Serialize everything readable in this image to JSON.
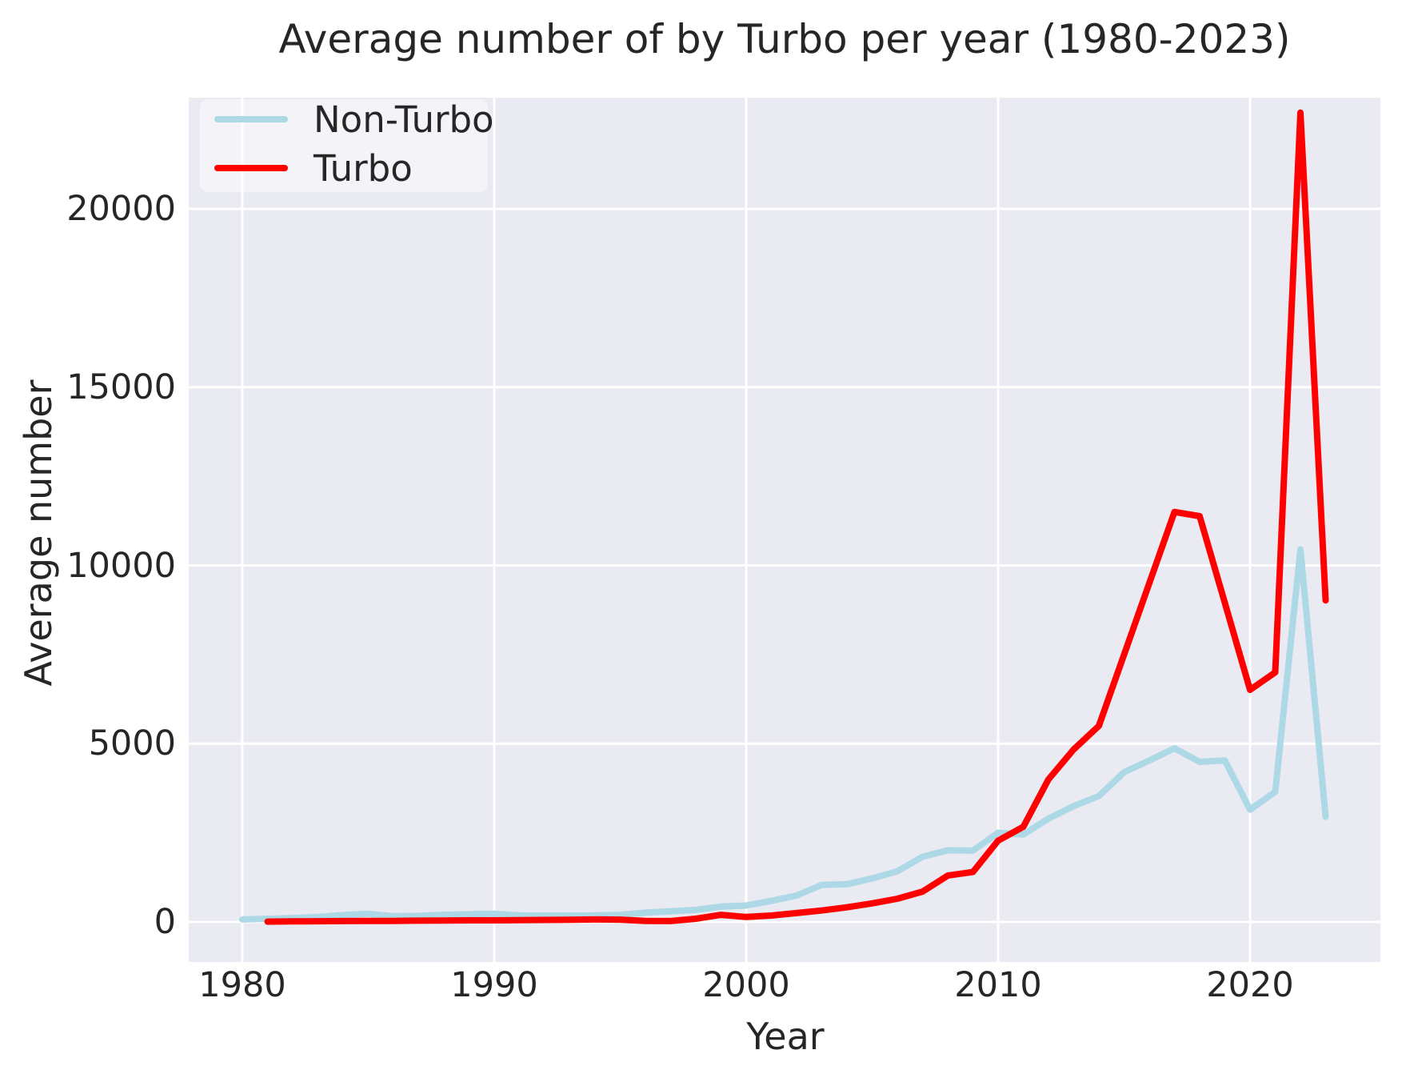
{
  "title": "Average number of by Turbo per year (1980-2023)",
  "x_axis": {
    "label": "Year",
    "ticks": [
      "1980",
      "1990",
      "2000",
      "2010",
      "2020"
    ]
  },
  "y_axis": {
    "label": "Average number",
    "ticks": [
      "0",
      "5000",
      "10000",
      "15000",
      "20000"
    ]
  },
  "legend": {
    "items": [
      {
        "label": "Non-Turbo",
        "color": "#add8e6"
      },
      {
        "label": "Turbo",
        "color": "#ff0000"
      }
    ]
  },
  "colors": {
    "plot_background": "#eaeaf2",
    "gridline": "#ffffff",
    "text": "#262626",
    "non_turbo_line": "#add8e6",
    "turbo_line": "#ff0000"
  },
  "chart_data": {
    "type": "line",
    "title": "Average number of by Turbo per year (1980-2023)",
    "xlabel": "Year",
    "ylabel": "Average number",
    "xlim": [
      1977.85,
      2025.15
    ],
    "ylim": [
      -1130,
      23120
    ],
    "grid": true,
    "legend_position": "upper left",
    "series": [
      {
        "name": "Non-Turbo",
        "color": "#add8e6",
        "x": [
          1980,
          1981,
          1982,
          1983,
          1984,
          1985,
          1986,
          1987,
          1988,
          1989,
          1990,
          1991,
          1992,
          1993,
          1994,
          1995,
          1996,
          1997,
          1998,
          1999,
          2000,
          2001,
          2002,
          2003,
          2004,
          2005,
          2006,
          2007,
          2008,
          2009,
          2010,
          2011,
          2012,
          2013,
          2014,
          2015,
          2016,
          2017,
          2018,
          2019,
          2020,
          2021,
          2022,
          2023
        ],
        "y": [
          70,
          90,
          110,
          140,
          190,
          230,
          160,
          170,
          200,
          215,
          230,
          185,
          180,
          180,
          185,
          200,
          260,
          300,
          340,
          430,
          460,
          590,
          740,
          1040,
          1060,
          1220,
          1420,
          1830,
          2010,
          2000,
          2500,
          2450,
          2900,
          3250,
          3530,
          4200,
          4530,
          4870,
          4490,
          4530,
          3150,
          3650,
          10450,
          2950
        ]
      },
      {
        "name": "Turbo",
        "color": "#ff0000",
        "x": [
          1981,
          1982,
          1983,
          1984,
          1985,
          1986,
          1987,
          1988,
          1989,
          1990,
          1991,
          1992,
          1993,
          1994,
          1995,
          1996,
          1997,
          1998,
          1999,
          2000,
          2001,
          2002,
          2003,
          2004,
          2005,
          2006,
          2007,
          2008,
          2009,
          2010,
          2011,
          2012,
          2013,
          2014,
          2015,
          2016,
          2017,
          2018,
          2019,
          2020,
          2021,
          2022,
          2023
        ],
        "y": [
          10,
          15,
          20,
          25,
          30,
          30,
          35,
          40,
          45,
          45,
          50,
          55,
          60,
          70,
          65,
          30,
          25,
          90,
          200,
          140,
          180,
          250,
          320,
          410,
          520,
          650,
          850,
          1300,
          1400,
          2280,
          2670,
          4000,
          4840,
          5500,
          7500,
          9500,
          11500,
          11380,
          8950,
          6510,
          7000,
          22700,
          9020
        ]
      }
    ]
  }
}
